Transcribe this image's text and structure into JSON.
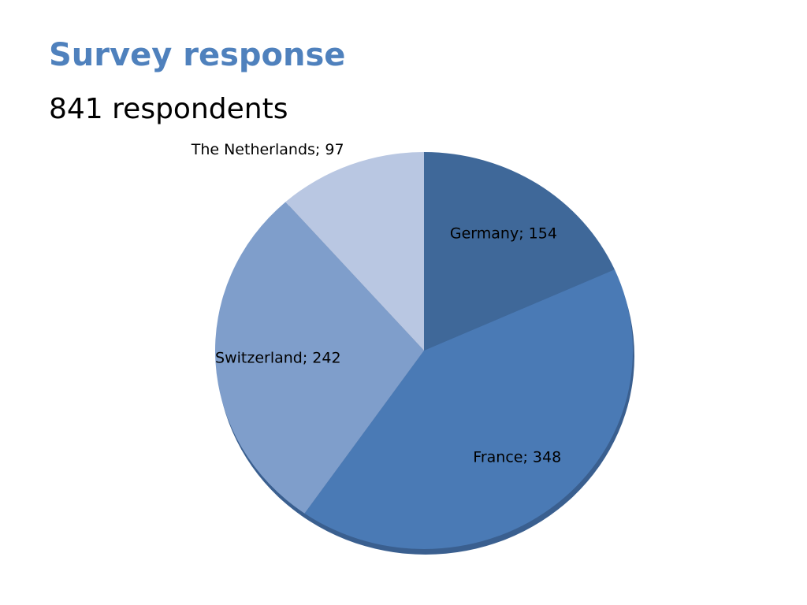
{
  "chart_data": {
    "type": "pie",
    "title": "Survey response",
    "subtitle": "841 respondents",
    "values": [
      154,
      348,
      242,
      97
    ],
    "value_labels": [
      "Germany; 154",
      "France; 348",
      "Switzerland; 242",
      "The Netherlands; 97"
    ],
    "colors": [
      "#3f6899",
      "#4a7ab5",
      "#7f9ecb",
      "#b9c7e2"
    ]
  }
}
